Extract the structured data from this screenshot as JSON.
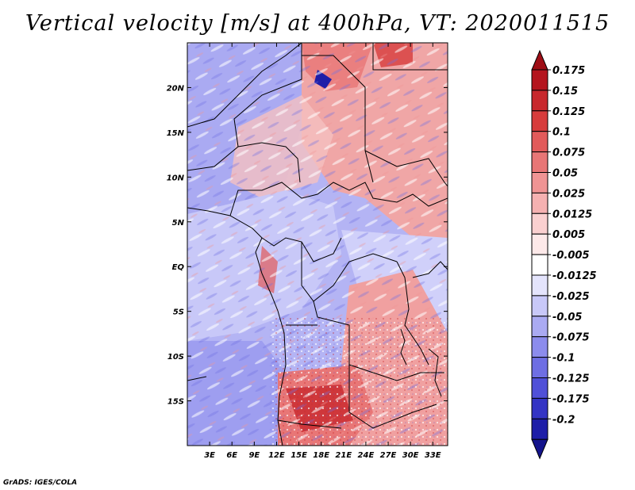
{
  "title": "Vertical velocity [m/s] at 400hPa, VT: 2020011515",
  "credit": "GrADS: IGES/COLA",
  "map": {
    "lon_range": [
      0,
      35
    ],
    "lat_range": [
      -20,
      25
    ],
    "lat_ticks": [
      {
        "lat": 20,
        "label": "20N"
      },
      {
        "lat": 15,
        "label": "15N"
      },
      {
        "lat": 10,
        "label": "10N"
      },
      {
        "lat": 5,
        "label": "5N"
      },
      {
        "lat": 0,
        "label": "EQ"
      },
      {
        "lat": -5,
        "label": "5S"
      },
      {
        "lat": -10,
        "label": "10S"
      },
      {
        "lat": -15,
        "label": "15S"
      }
    ],
    "lon_ticks": [
      {
        "lon": 3,
        "label": "3E"
      },
      {
        "lon": 6,
        "label": "6E"
      },
      {
        "lon": 9,
        "label": "9E"
      },
      {
        "lon": 12,
        "label": "12E"
      },
      {
        "lon": 15,
        "label": "15E"
      },
      {
        "lon": 18,
        "label": "18E"
      },
      {
        "lon": 21,
        "label": "21E"
      },
      {
        "lon": 24,
        "label": "24E"
      },
      {
        "lon": 27,
        "label": "27E"
      },
      {
        "lon": 30,
        "label": "30E"
      },
      {
        "lon": 33,
        "label": "33E"
      }
    ]
  },
  "colorbar": {
    "levels": [
      {
        "label": "0.175",
        "color": "#b4141e"
      },
      {
        "label": "0.15",
        "color": "#c8282d"
      },
      {
        "label": "0.125",
        "color": "#d73c3c"
      },
      {
        "label": "0.1",
        "color": "#e15a5a"
      },
      {
        "label": "0.075",
        "color": "#e87676"
      },
      {
        "label": "0.05",
        "color": "#ef9494"
      },
      {
        "label": "0.025",
        "color": "#f5b1b1"
      },
      {
        "label": "0.0125",
        "color": "#fad0d0"
      },
      {
        "label": "0.005",
        "color": "#fde9e9"
      },
      {
        "label": "-0.005",
        "color": "#ffffff"
      },
      {
        "label": "-0.0125",
        "color": "#e4e4fc"
      },
      {
        "label": "-0.025",
        "color": "#c8c8f8"
      },
      {
        "label": "-0.05",
        "color": "#aaaaf2"
      },
      {
        "label": "-0.075",
        "color": "#8c8cec"
      },
      {
        "label": "-0.1",
        "color": "#6e6ee3"
      },
      {
        "label": "-0.125",
        "color": "#5050d8"
      },
      {
        "label": "-0.175",
        "color": "#3434c4"
      },
      {
        "label": "-0.2",
        "color": "#1e1ea8"
      }
    ],
    "over_color": "#9e0e16",
    "under_color": "#14148c"
  }
}
